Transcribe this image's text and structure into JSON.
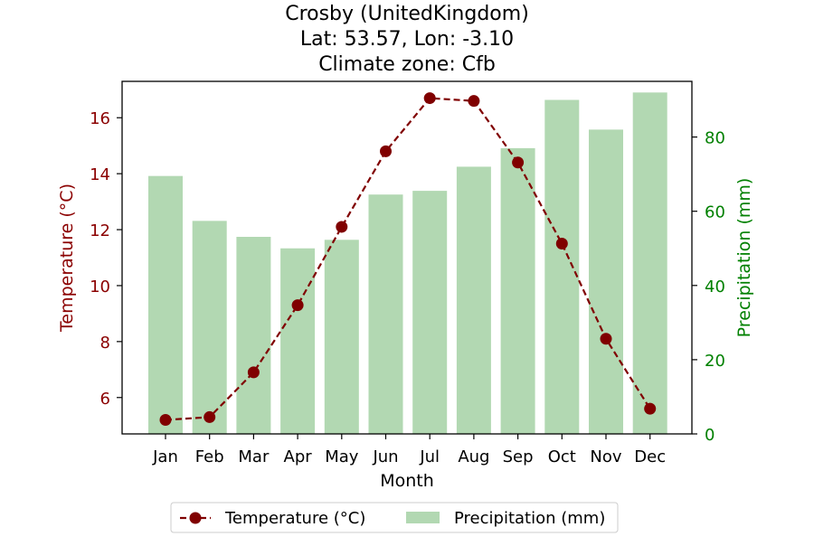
{
  "chart_data": {
    "type": "bar+line",
    "title_lines": [
      "Crosby (UnitedKingdom)",
      "Lat: 53.57, Lon: -3.10",
      "Climate zone: Cfb"
    ],
    "xlabel": "Month",
    "categories": [
      "Jan",
      "Feb",
      "Mar",
      "Apr",
      "May",
      "Jun",
      "Jul",
      "Aug",
      "Sep",
      "Oct",
      "Nov",
      "Dec"
    ],
    "y_left": {
      "label": "Temperature (°C)",
      "ylim": [
        4.7,
        17.3
      ],
      "ticks": [
        6,
        8,
        10,
        12,
        14,
        16
      ],
      "color": "#8b0000"
    },
    "y_right": {
      "label": "Precipitation (mm)",
      "ylim": [
        0,
        95
      ],
      "ticks": [
        0,
        20,
        40,
        60,
        80
      ],
      "color": "#008000"
    },
    "series": [
      {
        "name": "Temperature (°C)",
        "type": "line",
        "axis": "left",
        "style": "dashed",
        "marker": "circle",
        "color": "#800000",
        "values": [
          5.2,
          5.3,
          6.9,
          9.3,
          12.1,
          14.8,
          16.7,
          16.6,
          14.4,
          11.5,
          8.1,
          5.6
        ]
      },
      {
        "name": "Precipitation (mm)",
        "type": "bar",
        "axis": "right",
        "color": "#b2d8b2",
        "values": [
          69.5,
          57.4,
          53.1,
          50.0,
          52.3,
          64.5,
          65.5,
          72.0,
          77.0,
          90.0,
          82.0,
          92.0
        ]
      }
    ],
    "grid": false,
    "legend": {
      "placement": "bottom-center",
      "entries": [
        "Temperature (°C)",
        "Precipitation (mm)"
      ]
    }
  }
}
